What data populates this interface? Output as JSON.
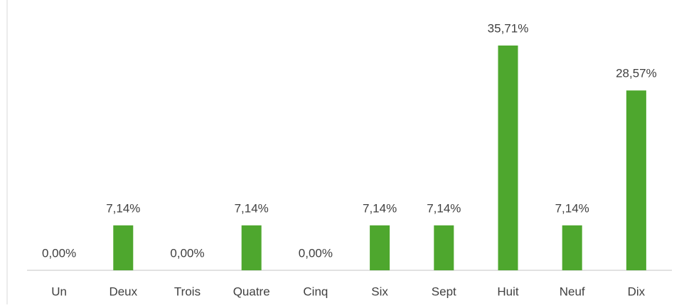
{
  "chart_data": {
    "type": "bar",
    "categories": [
      "Un",
      "Deux",
      "Trois",
      "Quatre",
      "Cinq",
      "Six",
      "Sept",
      "Huit",
      "Neuf",
      "Dix"
    ],
    "values": [
      0,
      7.14,
      0,
      7.14,
      0,
      7.14,
      7.14,
      35.71,
      7.14,
      28.57
    ],
    "value_labels": [
      "0,00%",
      "7,14%",
      "0,00%",
      "7,14%",
      "0,00%",
      "7,14%",
      "7,14%",
      "35,71%",
      "7,14%",
      "28,57%"
    ],
    "color": "#4ea72e"
  }
}
